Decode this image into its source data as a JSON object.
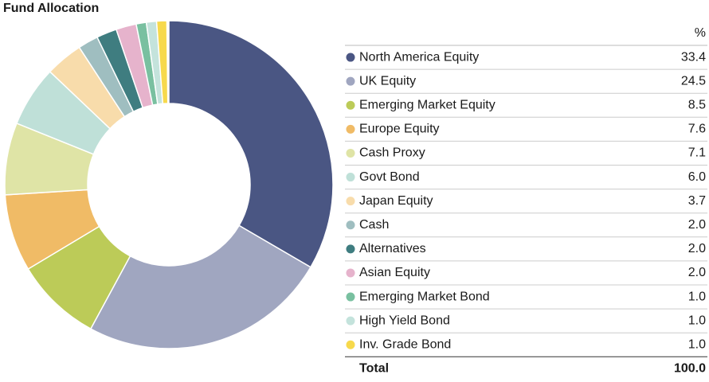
{
  "chart_data": {
    "type": "donut",
    "title": "Fund Allocation",
    "value_header": "%",
    "categories": [
      "North America Equity",
      "UK Equity",
      "Emerging Market Equity",
      "Europe Equity",
      "Cash Proxy",
      "Govt Bond",
      "Japan Equity",
      "Cash",
      "Alternatives",
      "Asian Equity",
      "Emerging Market Bond",
      "High Yield Bond",
      "Inv. Grade Bond"
    ],
    "values": [
      33.4,
      24.5,
      8.5,
      7.6,
      7.1,
      6,
      3.7,
      2,
      2,
      2,
      1,
      1,
      1
    ],
    "value_labels": [
      "33.4",
      "24.5",
      "8.5",
      "7.6",
      "7.1",
      "6.0",
      "3.7",
      "2.0",
      "2.0",
      "2.0",
      "1.0",
      "1.0",
      "1.0"
    ],
    "colors": [
      "#4a5683",
      "#a0a6c0",
      "#bccb58",
      "#f0bb66",
      "#dfe4a6",
      "#bfe0d8",
      "#f8dcab",
      "#9fbec0",
      "#3f7d80",
      "#e6b3cc",
      "#79c0a0",
      "#c4e3dc",
      "#f7d94c"
    ],
    "total": {
      "label": "Total",
      "value": 100,
      "value_label": "100.0"
    }
  }
}
